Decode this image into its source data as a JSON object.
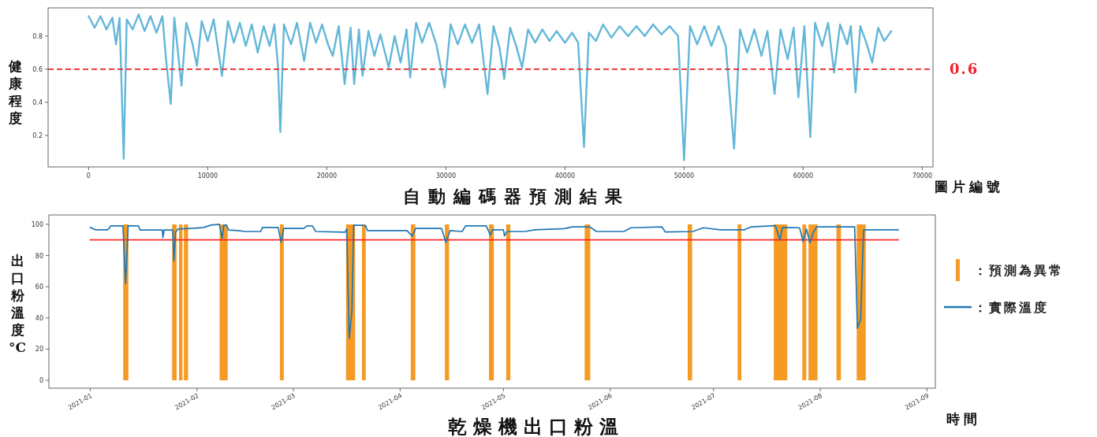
{
  "chart_data": [
    {
      "type": "line",
      "title": "自動編碼器預測結果",
      "xlabel": "圖片編號",
      "ylabel": "健康程度",
      "xlim": [
        -3400,
        70900
      ],
      "ylim": [
        0.01,
        0.97
      ],
      "xticks": [
        0,
        10000,
        20000,
        30000,
        40000,
        50000,
        60000,
        70000
      ],
      "yticks": [
        0.2,
        0.4,
        0.6,
        0.8
      ],
      "x": [
        0,
        500,
        1000,
        1500,
        2000,
        2300,
        2600,
        2950,
        3200,
        3700,
        4200,
        4700,
        5200,
        5700,
        6200,
        6500,
        6900,
        7200,
        7800,
        8200,
        8700,
        9100,
        9500,
        10000,
        10500,
        11200,
        11700,
        12200,
        12700,
        13200,
        13700,
        14200,
        14700,
        15200,
        15600,
        15900,
        16100,
        16400,
        17000,
        17500,
        18100,
        18600,
        19100,
        19600,
        20100,
        20500,
        21000,
        21500,
        22000,
        22300,
        22700,
        23000,
        23500,
        24000,
        24500,
        25200,
        25700,
        26200,
        26700,
        27000,
        27500,
        28000,
        28600,
        29200,
        29900,
        30400,
        31000,
        31600,
        32200,
        32800,
        33500,
        34000,
        34500,
        34900,
        35400,
        35900,
        36400,
        36900,
        37500,
        38100,
        38700,
        39300,
        40000,
        40600,
        41100,
        41600,
        42000,
        42600,
        43200,
        43900,
        44600,
        45300,
        46000,
        46700,
        47400,
        48100,
        48800,
        49500,
        50000,
        50500,
        51100,
        51700,
        52300,
        52900,
        53500,
        54200,
        54700,
        55300,
        55900,
        56500,
        57000,
        57600,
        58100,
        58700,
        59200,
        59600,
        60100,
        60600,
        61000,
        61600,
        62100,
        62600,
        63100,
        63700,
        64000,
        64400,
        64800,
        65300,
        65800,
        66300,
        66800,
        67400
      ],
      "series": [
        {
          "color": "#62b7d8",
          "values": [
            0.92,
            0.85,
            0.92,
            0.84,
            0.91,
            0.75,
            0.91,
            0.06,
            0.9,
            0.84,
            0.93,
            0.83,
            0.92,
            0.82,
            0.92,
            0.66,
            0.39,
            0.91,
            0.5,
            0.88,
            0.76,
            0.62,
            0.89,
            0.77,
            0.9,
            0.56,
            0.89,
            0.76,
            0.88,
            0.74,
            0.87,
            0.7,
            0.86,
            0.74,
            0.87,
            0.62,
            0.22,
            0.87,
            0.75,
            0.88,
            0.65,
            0.88,
            0.76,
            0.87,
            0.75,
            0.68,
            0.86,
            0.51,
            0.85,
            0.51,
            0.84,
            0.56,
            0.83,
            0.68,
            0.81,
            0.61,
            0.8,
            0.64,
            0.84,
            0.55,
            0.88,
            0.76,
            0.88,
            0.75,
            0.49,
            0.87,
            0.75,
            0.87,
            0.76,
            0.87,
            0.45,
            0.86,
            0.73,
            0.54,
            0.85,
            0.74,
            0.61,
            0.84,
            0.76,
            0.84,
            0.77,
            0.83,
            0.76,
            0.82,
            0.76,
            0.13,
            0.82,
            0.77,
            0.87,
            0.79,
            0.86,
            0.8,
            0.86,
            0.8,
            0.87,
            0.81,
            0.86,
            0.8,
            0.05,
            0.86,
            0.75,
            0.86,
            0.74,
            0.86,
            0.74,
            0.12,
            0.84,
            0.7,
            0.84,
            0.68,
            0.83,
            0.45,
            0.84,
            0.66,
            0.85,
            0.43,
            0.86,
            0.19,
            0.88,
            0.74,
            0.88,
            0.58,
            0.87,
            0.75,
            0.86,
            0.46,
            0.86,
            0.76,
            0.64,
            0.85,
            0.77,
            0.83
          ]
        }
      ],
      "ref_lines": [
        {
          "axis": "y",
          "value": 0.6,
          "label": "0.6",
          "color": "#f0202a",
          "line_style": "dashed"
        }
      ]
    },
    {
      "type": "line",
      "title": "乾燥機出口粉溫",
      "xlabel": "時間",
      "ylabel": "出口粉溫度°C",
      "xlim": [
        "2020-12-20",
        "2021-09-03T10:00"
      ],
      "ylim": [
        -5,
        106
      ],
      "xticks": [
        "2021-01",
        "2021-02",
        "2021-03",
        "2021-04",
        "2021-05",
        "2021-06",
        "2021-07",
        "2021-08",
        "2021-09"
      ],
      "yticks": [
        0,
        20,
        40,
        60,
        80,
        100
      ],
      "legend": "right",
      "series": [
        {
          "type": "area",
          "name": "：預測為異常",
          "color": "#f59a23",
          "x": [
            "2021-01-10T14:00",
            "2021-01-10T14:00",
            "2021-01-12T02:00",
            "2021-01-12T02:00",
            "2021-01-24T19:00",
            "2021-01-24T19:00",
            "2021-01-26T02:00",
            "2021-01-26T02:00",
            "2021-01-26T19:00",
            "2021-01-26T19:00",
            "2021-01-27T19:00",
            "2021-01-27T19:00",
            "2021-01-28T05:00",
            "2021-01-28T05:00",
            "2021-01-29T10:00",
            "2021-01-29T10:00",
            "2021-02-07T14:00",
            "2021-02-07T14:00",
            "2021-02-09T22:00",
            "2021-02-09T22:00",
            "2021-02-25T02:00",
            "2021-02-25T02:00",
            "2021-02-26T05:00",
            "2021-02-26T05:00",
            "2021-03-16T07:00",
            "2021-03-16T07:00",
            "2021-03-18T22:00",
            "2021-03-18T22:00",
            "2021-03-20T22:00",
            "2021-03-20T22:00",
            "2021-03-22",
            "2021-03-22",
            "2021-04-04T02:00",
            "2021-04-04T02:00",
            "2021-04-05T10:00",
            "2021-04-05T10:00",
            "2021-04-14",
            "2021-04-14",
            "2021-04-15T05:00",
            "2021-04-15T05:00",
            "2021-04-26T19:00",
            "2021-04-26T19:00",
            "2021-04-28T05:00",
            "2021-04-28T05:00",
            "2021-05-01T19:00",
            "2021-05-01T19:00",
            "2021-05-03",
            "2021-05-03",
            "2021-05-24T14:00",
            "2021-05-24T14:00",
            "2021-05-26T05:00",
            "2021-05-26T05:00",
            "2021-06-23T12:00",
            "2021-06-23T12:00",
            "2021-06-24T19:00",
            "2021-06-24T19:00",
            "2021-07-08",
            "2021-07-08",
            "2021-07-09T02:00",
            "2021-07-09T02:00",
            "2021-07-18T12:00",
            "2021-07-18T12:00",
            "2021-07-22T10:00",
            "2021-07-22T10:00",
            "2021-07-26T19:00",
            "2021-07-26T19:00",
            "2021-07-27T22:00",
            "2021-07-27T22:00",
            "2021-07-28T14:00",
            "2021-07-28T14:00",
            "2021-07-31T05:00",
            "2021-07-31T05:00",
            "2021-08-05T17:00",
            "2021-08-05T17:00",
            "2021-08-07",
            "2021-08-07",
            "2021-08-11T14:00",
            "2021-08-11T14:00",
            "2021-08-14T05:00",
            "2021-08-14T05:00"
          ],
          "values": [
            0,
            100,
            100,
            0,
            0,
            100,
            100,
            0,
            0,
            100,
            100,
            0,
            0,
            100,
            100,
            0,
            0,
            100,
            100,
            0,
            0,
            100,
            100,
            0,
            0,
            100,
            100,
            0,
            0,
            100,
            100,
            0,
            0,
            100,
            100,
            0,
            0,
            100,
            100,
            0,
            0,
            100,
            100,
            0,
            0,
            100,
            100,
            0,
            0,
            100,
            100,
            0,
            0,
            100,
            100,
            0,
            0,
            100,
            100,
            0,
            0,
            100,
            100,
            0,
            0,
            100,
            100,
            0,
            0,
            100,
            100,
            0,
            0,
            100,
            100,
            0,
            0,
            100,
            100,
            0
          ]
        },
        {
          "color": "#ff2a2a",
          "x": [
            "2021-01-01",
            "2021-08-23T17:00"
          ],
          "values": [
            90,
            90
          ]
        },
        {
          "name": "：實際溫度",
          "color": "#1f77b4",
          "x": [
            "2021-01-01",
            "2021-01-02T12:00",
            "2021-01-06",
            "2021-01-06T12:00",
            "2021-01-07",
            "2021-01-10T12:00",
            "2021-01-11T07:00",
            "2021-01-12",
            "2021-01-15",
            "2021-01-15T12:00",
            "2021-01-22",
            "2021-01-22T02:00",
            "2021-01-22T12:00",
            "2021-01-25",
            "2021-01-25T07:00",
            "2021-01-25T19:00",
            "2021-01-26T12:00",
            "2021-01-31",
            "2021-02-03",
            "2021-02-05",
            "2021-02-07T12:00",
            "2021-02-08T07:00",
            "2021-02-08T19:00",
            "2021-02-09T12:00",
            "2021-02-10T05:00",
            "2021-02-13",
            "2021-02-15",
            "2021-02-19T12:00",
            "2021-02-20",
            "2021-02-24T14:00",
            "2021-02-25T10:00",
            "2021-02-26T05:00",
            "2021-03-04",
            "2021-03-05",
            "2021-03-06T12:00",
            "2021-03-07T12:00",
            "2021-03-16",
            "2021-03-16T12:00",
            "2021-03-17T05:00",
            "2021-03-18",
            "2021-03-18T12:00",
            "2021-03-21",
            "2021-03-22",
            "2021-03-22T12:00",
            "2021-04-03",
            "2021-04-04T12:00",
            "2021-04-05T12:00",
            "2021-04-13",
            "2021-04-14T07:00",
            "2021-04-15T12:00",
            "2021-04-19",
            "2021-04-20",
            "2021-04-26",
            "2021-04-27T05:00",
            "2021-04-27T19:00",
            "2021-05-01",
            "2021-05-01T07:00",
            "2021-05-02",
            "2021-05-07T07:00",
            "2021-05-10",
            "2021-05-18T17:00",
            "2021-05-21",
            "2021-05-26",
            "2021-05-28",
            "2021-06-05",
            "2021-06-07",
            "2021-06-16",
            "2021-06-17",
            "2021-06-25",
            "2021-06-28",
            "2021-07-03",
            "2021-07-10",
            "2021-07-12",
            "2021-07-19",
            "2021-07-20T07:00",
            "2021-07-21",
            "2021-07-26",
            "2021-07-27",
            "2021-07-28",
            "2021-07-29",
            "2021-07-30",
            "2021-07-31",
            "2021-08-11",
            "2021-08-11T19:00",
            "2021-08-12T17:00",
            "2021-08-13T14:00",
            "2021-08-23T17:00"
          ],
          "values": [
            98,
            96.5,
            96.5,
            97.5,
            99,
            99,
            62,
            99,
            99,
            96.4,
            96.4,
            91.5,
            96.4,
            96.4,
            76.5,
            95,
            97,
            97.5,
            98,
            99.5,
            100,
            91,
            99.5,
            99.5,
            96.4,
            96,
            95.4,
            95.4,
            98,
            98,
            88.5,
            97.4,
            97.4,
            99,
            99,
            95.4,
            95,
            97,
            26.8,
            45,
            99.4,
            99.4,
            99,
            96,
            96,
            92.4,
            97.4,
            97.4,
            88.5,
            96,
            95.4,
            99,
            99,
            93,
            96.5,
            96.5,
            92.6,
            95.4,
            95.4,
            96.5,
            97.2,
            98.4,
            98.4,
            95.4,
            95.4,
            97.8,
            98.4,
            95.1,
            95.4,
            97.8,
            96.5,
            96.5,
            98.4,
            99.1,
            90.1,
            98,
            97.8,
            89.1,
            97,
            88.2,
            95,
            98.4,
            98.4,
            33.4,
            39,
            96.5,
            96.5
          ]
        }
      ]
    }
  ]
}
